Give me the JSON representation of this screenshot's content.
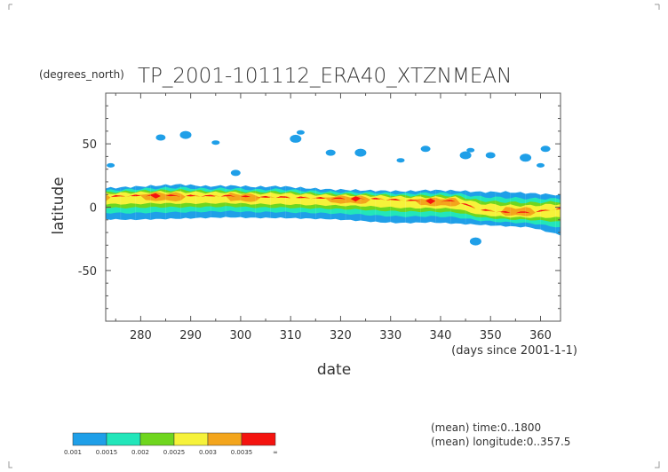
{
  "chart_data": {
    "type": "heatmap",
    "title": "TP_2001-101112_ERA40_XTZNMEAN",
    "units_label": "(degrees_north)",
    "xlabel": "date",
    "ylabel": "latitude",
    "x_units_note": "(days since 2001-1-1)",
    "xlim": [
      273,
      364
    ],
    "ylim": [
      -90,
      90
    ],
    "x_ticks": [
      "280",
      "290",
      "300",
      "310",
      "320",
      "330",
      "340",
      "350",
      "360"
    ],
    "y_ticks": [
      "50",
      "0",
      "-50"
    ],
    "grid": false,
    "notes": [
      "(mean) time:0..1800",
      "(mean) longitude:0..357.5"
    ],
    "colorbar": {
      "levels": [
        "0.001",
        "0.0015",
        "0.002",
        "0.0025",
        "0.003",
        "0.0035",
        "∞"
      ],
      "colors": [
        "#1f9fe8",
        "#22e6ba",
        "#6fd61e",
        "#f6f23a",
        "#f3a51c",
        "#f4130f"
      ]
    },
    "bands": [
      {
        "day": 273,
        "lat_bottom": -9.5,
        "lat_top": 15.0,
        "peak_lat": 8.5,
        "peak_level": 5
      },
      {
        "day": 278,
        "lat_bottom": -10.0,
        "lat_top": 16.0,
        "peak_lat": 9.0,
        "peak_level": 4
      },
      {
        "day": 283,
        "lat_bottom": -9.5,
        "lat_top": 17.0,
        "peak_lat": 9.5,
        "peak_level": 6
      },
      {
        "day": 288,
        "lat_bottom": -9.0,
        "lat_top": 18.0,
        "peak_lat": 9.0,
        "peak_level": 5
      },
      {
        "day": 293,
        "lat_bottom": -8.5,
        "lat_top": 16.5,
        "peak_lat": 9.0,
        "peak_level": 4
      },
      {
        "day": 298,
        "lat_bottom": -8.0,
        "lat_top": 17.0,
        "peak_lat": 9.0,
        "peak_level": 5
      },
      {
        "day": 303,
        "lat_bottom": -8.5,
        "lat_top": 16.0,
        "peak_lat": 8.0,
        "peak_level": 5
      },
      {
        "day": 308,
        "lat_bottom": -8.5,
        "lat_top": 16.5,
        "peak_lat": 8.0,
        "peak_level": 4
      },
      {
        "day": 313,
        "lat_bottom": -9.0,
        "lat_top": 15.0,
        "peak_lat": 7.5,
        "peak_level": 4
      },
      {
        "day": 318,
        "lat_bottom": -9.5,
        "lat_top": 14.0,
        "peak_lat": 7.0,
        "peak_level": 5
      },
      {
        "day": 323,
        "lat_bottom": -10.5,
        "lat_top": 13.5,
        "peak_lat": 7.0,
        "peak_level": 6
      },
      {
        "day": 328,
        "lat_bottom": -12.0,
        "lat_top": 13.0,
        "peak_lat": 6.5,
        "peak_level": 4
      },
      {
        "day": 333,
        "lat_bottom": -12.5,
        "lat_top": 12.5,
        "peak_lat": 5.5,
        "peak_level": 4
      },
      {
        "day": 338,
        "lat_bottom": -12.0,
        "lat_top": 13.5,
        "peak_lat": 5.0,
        "peak_level": 6
      },
      {
        "day": 343,
        "lat_bottom": -13.0,
        "lat_top": 13.0,
        "peak_lat": 5.0,
        "peak_level": 5
      },
      {
        "day": 348,
        "lat_bottom": -14.0,
        "lat_top": 12.0,
        "peak_lat": -2.0,
        "peak_level": 4
      },
      {
        "day": 353,
        "lat_bottom": -15.0,
        "lat_top": 12.0,
        "peak_lat": -4.0,
        "peak_level": 5
      },
      {
        "day": 358,
        "lat_bottom": -16.0,
        "lat_top": 11.0,
        "peak_lat": -4.0,
        "peak_level": 5
      },
      {
        "day": 364,
        "lat_bottom": -22.0,
        "lat_top": 9.5,
        "peak_lat": -1.0,
        "peak_level": 4
      }
    ],
    "patches": [
      {
        "day": 274,
        "lat": 33
      },
      {
        "day": 284,
        "lat": 55
      },
      {
        "day": 289,
        "lat": 57
      },
      {
        "day": 295,
        "lat": 51
      },
      {
        "day": 299,
        "lat": 27
      },
      {
        "day": 311,
        "lat": 54
      },
      {
        "day": 312,
        "lat": 59
      },
      {
        "day": 318,
        "lat": 43
      },
      {
        "day": 324,
        "lat": 43
      },
      {
        "day": 332,
        "lat": 37
      },
      {
        "day": 337,
        "lat": 46
      },
      {
        "day": 345,
        "lat": 41
      },
      {
        "day": 346,
        "lat": 45
      },
      {
        "day": 350,
        "lat": 41
      },
      {
        "day": 357,
        "lat": 39
      },
      {
        "day": 360,
        "lat": 33
      },
      {
        "day": 361,
        "lat": 46
      },
      {
        "day": 347,
        "lat": -27
      }
    ]
  }
}
